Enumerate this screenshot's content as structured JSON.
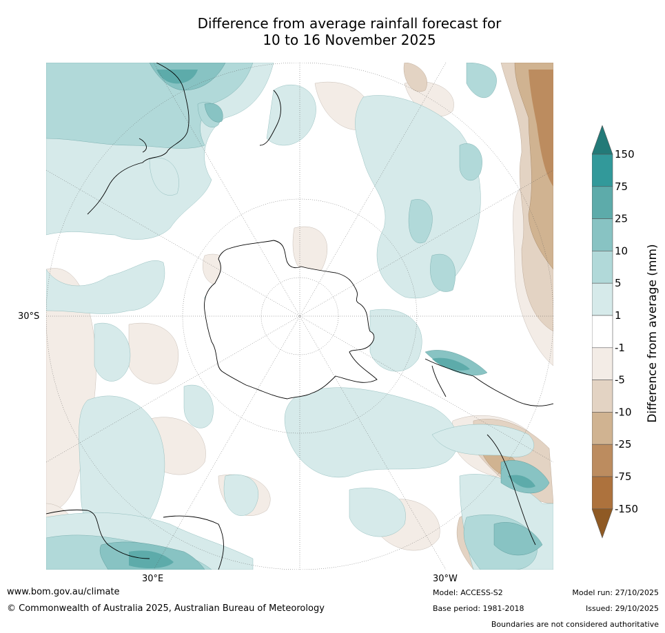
{
  "title": {
    "line1": "Difference from average rainfall forecast for",
    "line2": "10 to 16 November 2025"
  },
  "map_labels": {
    "lat": "30°S",
    "lon_east": "30°E",
    "lon_west": "30°W"
  },
  "colorbar": {
    "title": "Difference from average (mm)",
    "ticks": [
      "150",
      "75",
      "25",
      "10",
      "5",
      "1",
      "-1",
      "-5",
      "-10",
      "-25",
      "-75",
      "-150"
    ],
    "colors": {
      "ext_top": "#237a78",
      "bands_top_to_bottom": [
        "#32999a",
        "#5dabaa",
        "#88c3c3",
        "#b1d9d9",
        "#d6eaea",
        "#ffffff",
        "#f3ece6",
        "#e3d3c3",
        "#d0b391",
        "#bc8c5f",
        "#ad723d"
      ],
      "ext_bottom": "#8f5a24"
    }
  },
  "footer": {
    "website": "www.bom.gov.au/climate",
    "copyright": "© Commonwealth of Australia 2025, Australian Bureau of Meteorology",
    "model": "Model: ACCESS-S2",
    "base_period": "Base period: 1981-2018",
    "model_run": "Model run: 27/10/2025",
    "issued": "Issued: 29/10/2025",
    "disclaimer": "Boundaries are not considered authoritative"
  }
}
